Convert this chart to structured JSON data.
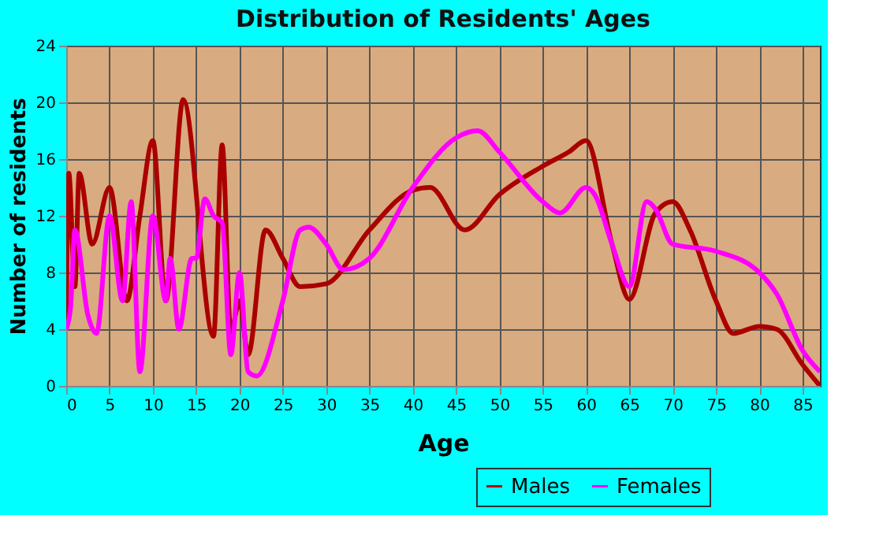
{
  "chart_data": {
    "type": "line",
    "title": "Distribution of Residents' Ages",
    "xlabel": "Age",
    "ylabel": "Number of residents",
    "xlim": [
      0,
      87
    ],
    "xticks": [
      0,
      5,
      10,
      15,
      20,
      25,
      30,
      35,
      40,
      45,
      50,
      55,
      60,
      65,
      70,
      75,
      80,
      85
    ],
    "ylim": [
      0,
      24
    ],
    "yticks": [
      0,
      4,
      8,
      12,
      16,
      20,
      24
    ],
    "grid": true,
    "legend": "bottom right",
    "marker": "none",
    "line_style": "solid",
    "series": [
      {
        "name": "Males",
        "color": "#aa0000",
        "x": [
          0,
          0.3,
          1,
          1.5,
          3,
          5,
          7,
          8.5,
          10,
          11.5,
          13.5,
          17,
          18,
          19,
          20,
          21,
          23,
          25,
          27,
          30,
          35,
          40,
          42,
          46,
          50,
          55,
          58,
          60,
          63,
          65,
          68,
          70,
          72,
          75,
          77,
          80,
          82,
          85,
          87
        ],
        "values": [
          4,
          15,
          7,
          15,
          10,
          14,
          6,
          12,
          17.3,
          6,
          20.2,
          3.5,
          17,
          3.8,
          6,
          2.2,
          11,
          9,
          7,
          7.2,
          11,
          13.8,
          14,
          11,
          13.5,
          15.5,
          16.5,
          17.3,
          10,
          6.1,
          12.2,
          13,
          11,
          6,
          3.7,
          4.2,
          4,
          1.5,
          0
        ]
      },
      {
        "name": "Females",
        "color": "#ff00ff",
        "x": [
          0,
          0.5,
          1,
          2.5,
          3.5,
          5,
          6.5,
          7.5,
          8.5,
          10,
          11.5,
          12,
          13,
          14.5,
          15,
          16,
          17,
          18,
          19,
          20,
          21,
          22,
          25,
          27,
          28,
          30,
          32,
          35,
          40,
          45,
          47.5,
          50,
          55,
          57,
          60,
          61,
          63,
          65,
          67,
          68,
          70,
          75,
          80,
          82,
          85,
          87
        ],
        "values": [
          4,
          5.5,
          11,
          5,
          3.7,
          12,
          6,
          13,
          1,
          12,
          6,
          9,
          4,
          9,
          9,
          13.2,
          12,
          11.5,
          2.2,
          8,
          1,
          0.7,
          6,
          11,
          11.2,
          10,
          8.2,
          9,
          14,
          17.5,
          18,
          16.5,
          13,
          12.2,
          14,
          13.5,
          10,
          7,
          13,
          12.5,
          10,
          9.5,
          8,
          6.5,
          2.5,
          1
        ]
      }
    ]
  }
}
